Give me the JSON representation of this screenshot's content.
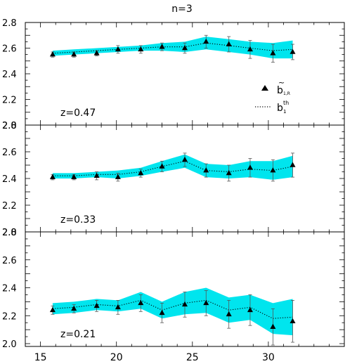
{
  "title": "n=3",
  "chart_data": {
    "type": "line",
    "title": "n=3",
    "xlabel": "",
    "ylabel": "",
    "xlim": [
      14,
      35
    ],
    "x_ticks": [
      15,
      20,
      25,
      30
    ],
    "y_ticks": [
      2.0,
      2.2,
      2.4,
      2.6,
      2.8
    ],
    "legend": {
      "placement": "top-right of upper panel",
      "entries": [
        {
          "marker": "triangle",
          "label_main": "b",
          "label_tilde": "~",
          "label_sub": "1,R"
        },
        {
          "marker": "dotted-line",
          "label_main": "b",
          "label_sub": "1",
          "label_sup": "th"
        }
      ]
    },
    "colors": {
      "band": "#00e5ee",
      "marker": "#000000"
    },
    "panels": [
      {
        "label": "z=0.47",
        "ylim": [
          2.0,
          2.8
        ],
        "series": [
          {
            "name": "b̃1,R",
            "x": [
              15.8,
              17.2,
              18.7,
              20.1,
              21.6,
              23.0,
              24.5,
              25.9,
              27.4,
              28.8,
              30.3,
              31.6
            ],
            "y": [
              2.55,
              2.55,
              2.56,
              2.59,
              2.59,
              2.61,
              2.6,
              2.65,
              2.63,
              2.59,
              2.56,
              2.57
            ],
            "yerr": [
              0.02,
              0.02,
              0.02,
              0.03,
              0.03,
              0.03,
              0.04,
              0.05,
              0.06,
              0.07,
              0.07,
              0.06
            ]
          },
          {
            "name": "b1th",
            "x": [
              15.8,
              17.2,
              18.7,
              20.1,
              21.6,
              23.0,
              24.5,
              25.9,
              27.4,
              28.8,
              30.3,
              31.6
            ],
            "y": [
              2.56,
              2.57,
              2.58,
              2.59,
              2.6,
              2.61,
              2.61,
              2.64,
              2.62,
              2.6,
              2.58,
              2.59
            ],
            "band": [
              0.02,
              0.02,
              0.02,
              0.02,
              0.02,
              0.03,
              0.04,
              0.05,
              0.05,
              0.05,
              0.06,
              0.07
            ]
          }
        ]
      },
      {
        "label": "z=0.33",
        "ylim": [
          2.0,
          2.8
        ],
        "series": [
          {
            "name": "b̃1,R",
            "x": [
              15.8,
              17.2,
              18.7,
              20.1,
              21.6,
              23.0,
              24.5,
              25.9,
              27.4,
              28.8,
              30.3,
              31.6
            ],
            "y": [
              2.41,
              2.41,
              2.42,
              2.41,
              2.44,
              2.49,
              2.54,
              2.46,
              2.44,
              2.48,
              2.46,
              2.5
            ],
            "yerr": [
              0.02,
              0.02,
              0.03,
              0.03,
              0.03,
              0.04,
              0.05,
              0.05,
              0.06,
              0.07,
              0.08,
              0.09
            ]
          },
          {
            "name": "b1th",
            "x": [
              15.8,
              17.2,
              18.7,
              20.1,
              21.6,
              23.0,
              24.5,
              25.9,
              27.4,
              28.8,
              30.3,
              31.6
            ],
            "y": [
              2.42,
              2.42,
              2.43,
              2.43,
              2.45,
              2.49,
              2.53,
              2.46,
              2.45,
              2.47,
              2.46,
              2.49
            ],
            "band": [
              0.02,
              0.02,
              0.02,
              0.03,
              0.03,
              0.04,
              0.05,
              0.05,
              0.05,
              0.06,
              0.07,
              0.08
            ]
          }
        ]
      },
      {
        "label": "z=0.21",
        "ylim": [
          1.98,
          2.8
        ],
        "series": [
          {
            "name": "b̃1,R",
            "x": [
              15.8,
              17.2,
              18.7,
              20.1,
              21.6,
              23.0,
              24.5,
              25.9,
              27.4,
              28.8,
              30.3,
              31.6
            ],
            "y": [
              2.24,
              2.25,
              2.27,
              2.26,
              2.29,
              2.22,
              2.28,
              2.29,
              2.21,
              2.24,
              2.12,
              2.16
            ],
            "yerr": [
              0.03,
              0.03,
              0.04,
              0.05,
              0.06,
              0.07,
              0.09,
              0.09,
              0.1,
              0.11,
              0.13,
              0.15
            ]
          },
          {
            "name": "b1th",
            "x": [
              15.8,
              17.2,
              18.7,
              20.1,
              21.6,
              23.0,
              24.5,
              25.9,
              27.4,
              28.8,
              30.3,
              31.6
            ],
            "y": [
              2.25,
              2.26,
              2.28,
              2.27,
              2.31,
              2.24,
              2.29,
              2.31,
              2.24,
              2.26,
              2.18,
              2.19
            ],
            "band": [
              0.04,
              0.04,
              0.04,
              0.04,
              0.06,
              0.06,
              0.08,
              0.09,
              0.09,
              0.09,
              0.11,
              0.13
            ]
          }
        ]
      }
    ]
  }
}
